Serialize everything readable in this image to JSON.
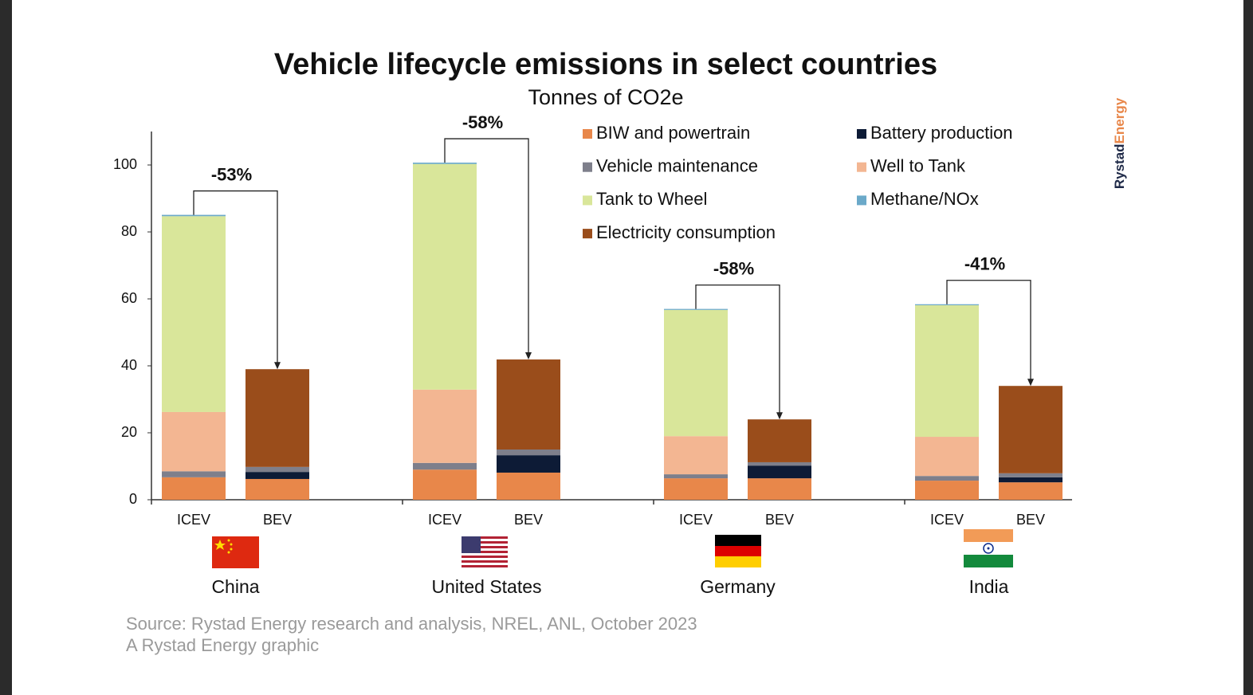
{
  "chart_data": {
    "type": "stacked_bar",
    "title": "Vehicle lifecycle emissions in select countries",
    "subtitle": "Tonnes of CO2e",
    "categories": [
      "ICEV",
      "BEV",
      "ICEV",
      "BEV",
      "ICEV",
      "BEV",
      "ICEV",
      "BEV"
    ],
    "groups": [
      "China",
      "United States",
      "Germany",
      "India"
    ],
    "annotations": [
      "-53%",
      "-58%",
      "-58%",
      "-41%"
    ],
    "series": [
      {
        "name": "BIW and powertrain",
        "color": "#e8874a",
        "values": [
          6.7,
          6.2,
          9.0,
          8.1,
          6.4,
          6.4,
          5.7,
          5.2
        ]
      },
      {
        "name": "Battery production",
        "color": "#0d1b36",
        "values": [
          0,
          2.1,
          0,
          5.2,
          0,
          3.8,
          0,
          1.5
        ]
      },
      {
        "name": "Vehicle maintenance",
        "color": "#7e7f8b",
        "values": [
          1.8,
          1.5,
          2.0,
          1.7,
          1.2,
          1.0,
          1.4,
          1.2
        ]
      },
      {
        "name": "Well to Tank",
        "color": "#f3b692",
        "values": [
          17.7,
          0,
          21.9,
          0,
          11.4,
          0,
          11.7,
          0
        ]
      },
      {
        "name": "Tank to Wheel",
        "color": "#d9e69a",
        "values": [
          58.5,
          0,
          67.4,
          0,
          37.7,
          0,
          39.3,
          0
        ]
      },
      {
        "name": "Methane/NOx",
        "color": "#6ba9c9",
        "values": [
          0.4,
          0,
          0.4,
          0,
          0.3,
          0,
          0.3,
          0
        ]
      },
      {
        "name": "Electricity consumption",
        "color": "#9a4d1b",
        "values": [
          0,
          29.2,
          0,
          26.9,
          0,
          12.8,
          0,
          26.1
        ]
      }
    ],
    "ylim": [
      0,
      110
    ],
    "yticks": [
      0,
      20,
      40,
      60,
      80,
      100
    ],
    "grid": false,
    "source": "Source: Rystad Energy research and analysis, NREL, ANL, October 2023",
    "credit": "A Rystad Energy graphic",
    "logo": {
      "first": "Rystad",
      "second": "Energy"
    }
  }
}
